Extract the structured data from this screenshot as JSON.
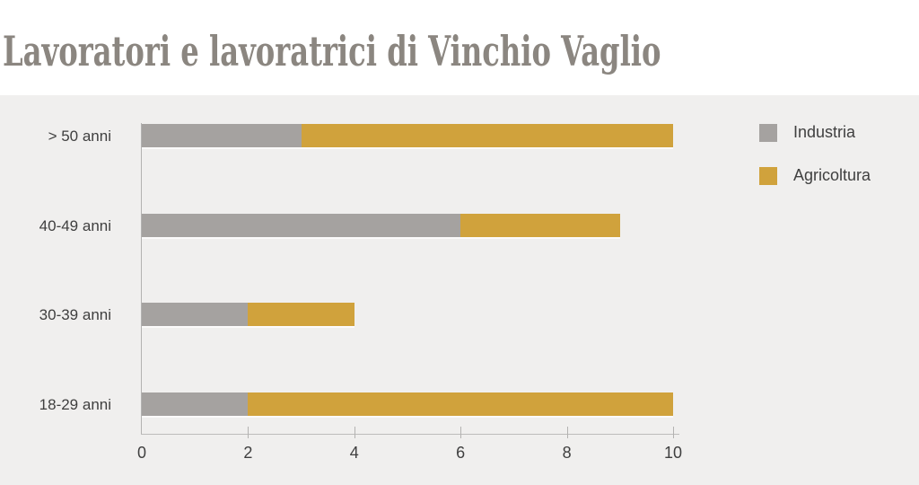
{
  "title": "Lavoratori e lavoratrici di Vinchio Vaglio",
  "colors": {
    "title_text": "#8B8680",
    "plot_background": "#F0EFEE",
    "page_background": "#FFFFFF",
    "axis_text": "#3F3F3F",
    "industria": "#A5A2A0",
    "agricoltura": "#D0A23C"
  },
  "legend": {
    "items": [
      {
        "label": "Industria",
        "color": "#A5A2A0"
      },
      {
        "label": "Agricoltura",
        "color": "#D0A23C"
      }
    ]
  },
  "chart_data": {
    "type": "bar",
    "orientation": "horizontal",
    "stacked": true,
    "title": "Lavoratori e lavoratrici di Vinchio Vaglio",
    "categories": [
      "> 50 anni",
      "40-49 anni",
      "30-39 anni",
      "18-29 anni"
    ],
    "series": [
      {
        "name": "Industria",
        "color": "#A5A2A0",
        "values": [
          3,
          6,
          2,
          2
        ]
      },
      {
        "name": "Agricoltura",
        "color": "#D0A23C",
        "values": [
          7,
          3,
          2,
          8
        ]
      }
    ],
    "totals": [
      10,
      9,
      4,
      10
    ],
    "xlim": [
      0,
      10
    ],
    "x_ticks": [
      0,
      2,
      4,
      6,
      8,
      10
    ],
    "grid": false,
    "legend_position": "top-right"
  }
}
